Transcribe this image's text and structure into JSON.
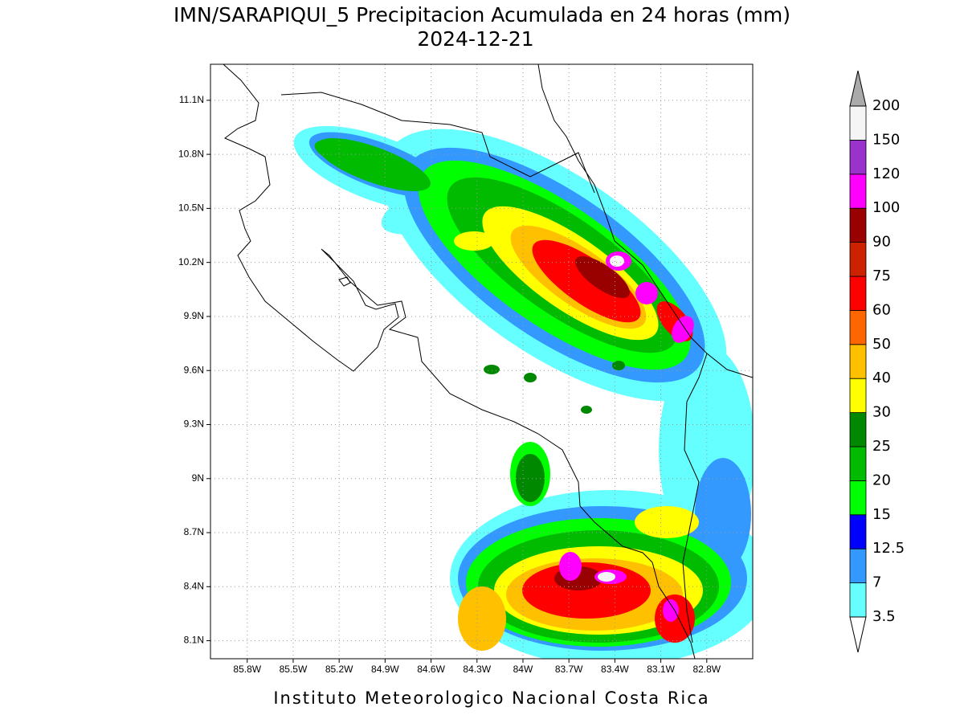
{
  "map": {
    "title": "IMN/SARAPIQUI_5 Precipitacion Acumulada en 24 horas (mm)",
    "subtitle": "2024-12-21",
    "footer": "Instituto Meteorologico Nacional Costa Rica",
    "xlim": [
      -86.04,
      -82.5
    ],
    "ylim": [
      8.0,
      11.3
    ],
    "grid": true,
    "xticks": [
      {
        "value": -85.8,
        "label": "85.8W"
      },
      {
        "value": -85.5,
        "label": "85.5W"
      },
      {
        "value": -85.2,
        "label": "85.2W"
      },
      {
        "value": -84.9,
        "label": "84.9W"
      },
      {
        "value": -84.6,
        "label": "84.6W"
      },
      {
        "value": -84.3,
        "label": "84.3W"
      },
      {
        "value": -84.0,
        "label": "84W"
      },
      {
        "value": -83.7,
        "label": "83.7W"
      },
      {
        "value": -83.4,
        "label": "83.4W"
      },
      {
        "value": -83.1,
        "label": "83.1W"
      },
      {
        "value": -82.8,
        "label": "82.8W"
      }
    ],
    "yticks": [
      {
        "value": 8.1,
        "label": "8.1N"
      },
      {
        "value": 8.4,
        "label": "8.4N"
      },
      {
        "value": 8.7,
        "label": "8.7N"
      },
      {
        "value": 9.0,
        "label": "9N"
      },
      {
        "value": 9.3,
        "label": "9.3N"
      },
      {
        "value": 9.6,
        "label": "9.6N"
      },
      {
        "value": 9.9,
        "label": "9.9N"
      },
      {
        "value": 10.2,
        "label": "10.2N"
      },
      {
        "value": 10.5,
        "label": "10.5N"
      },
      {
        "value": 10.8,
        "label": "10.8N"
      },
      {
        "value": 11.1,
        "label": "11.1N"
      }
    ],
    "colorbar": {
      "levels": [
        3.5,
        7,
        12.5,
        15,
        20,
        25,
        30,
        40,
        50,
        60,
        75,
        90,
        100,
        120,
        150,
        200
      ],
      "colors": [
        "#66ffff",
        "#3399ff",
        "#0000ff",
        "#00ff00",
        "#00bb00",
        "#008800",
        "#ffff00",
        "#ffc000",
        "#ff6600",
        "#ff0000",
        "#cc2200",
        "#990000",
        "#ff00ff",
        "#9933cc",
        "#f5f5f5"
      ],
      "under_color": "#ffffff",
      "over_color": "#aaaaaa"
    }
  }
}
